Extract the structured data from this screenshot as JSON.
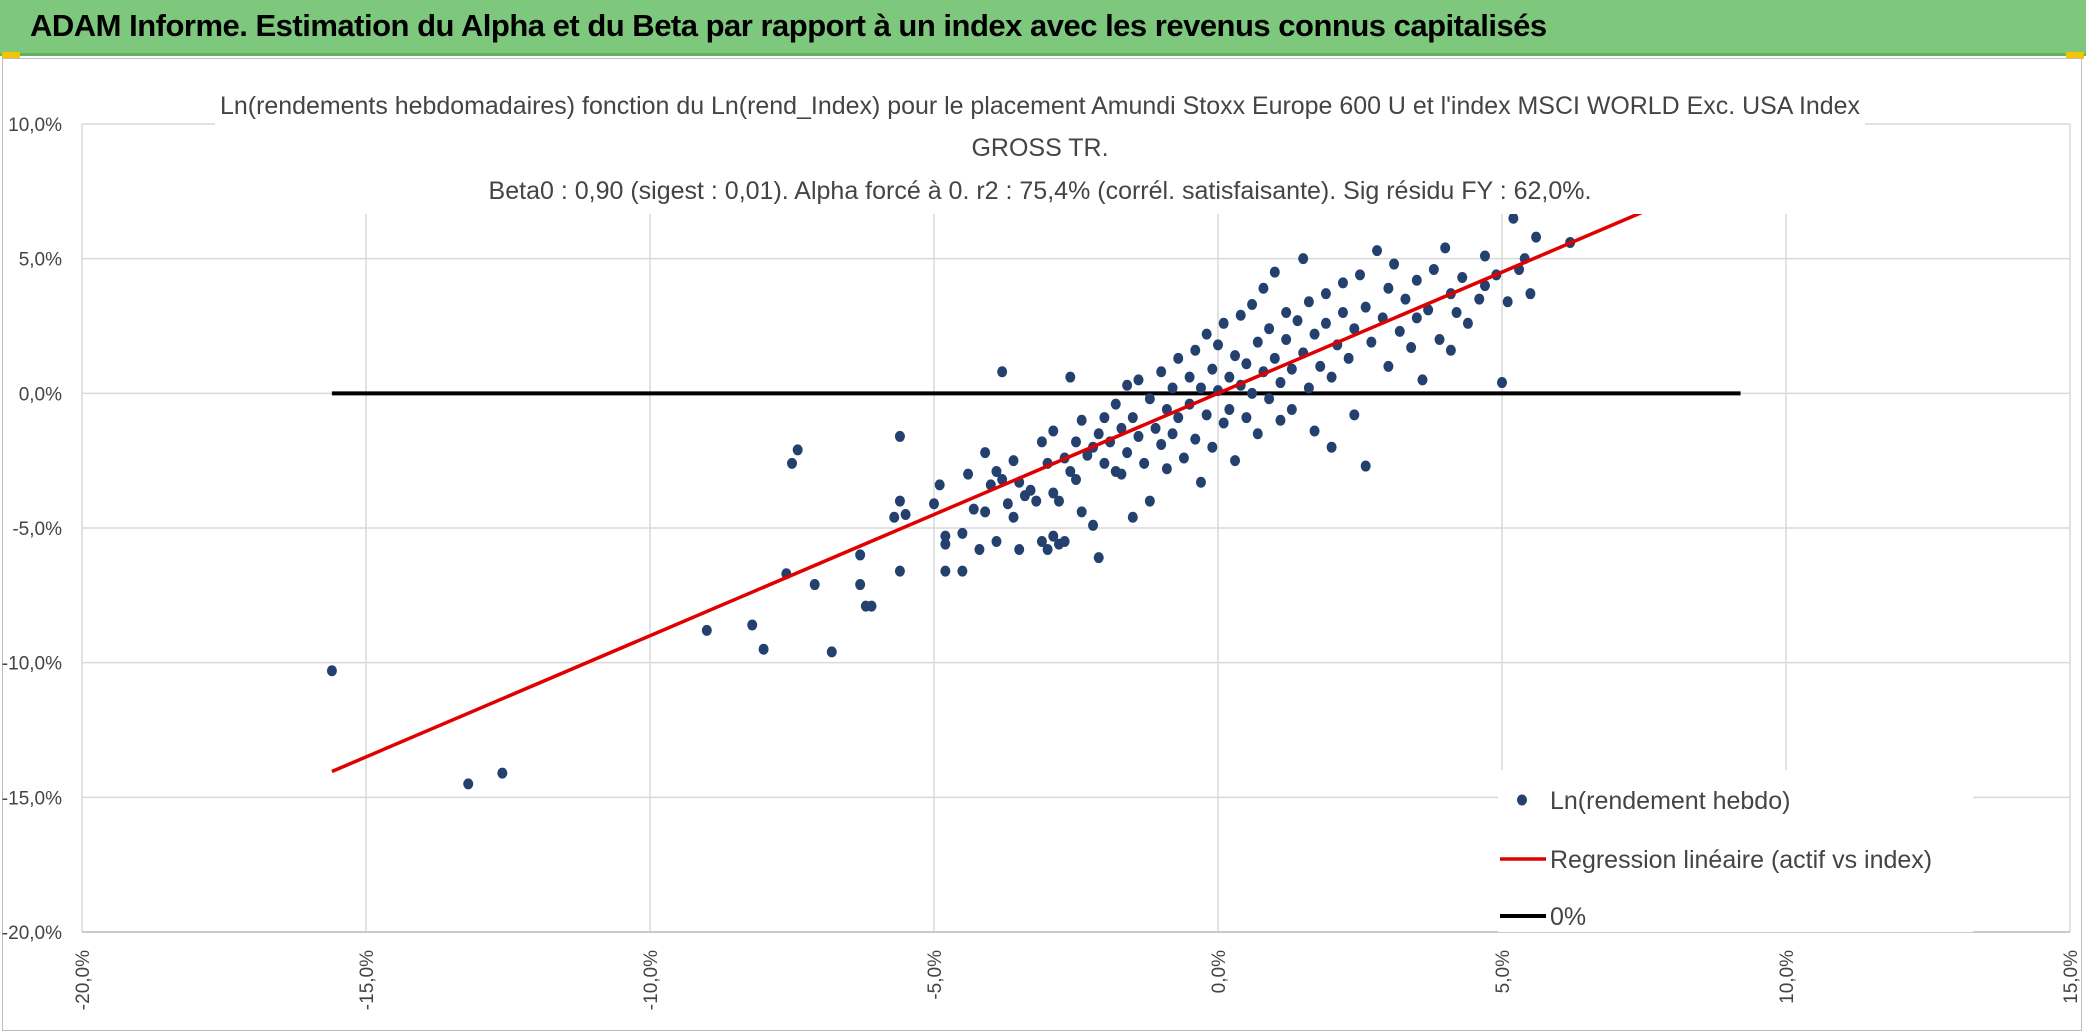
{
  "banner": {
    "title": "ADAM Informe. Estimation du Alpha et du Beta par rapport à un index avec les revenus connus capitalisés"
  },
  "colors": {
    "banner": "#7dc87d",
    "points": "#24406e",
    "regression": "#e00000",
    "zero_line": "#000000",
    "grid": "#d9d9d9"
  },
  "chart_data": {
    "type": "scatter",
    "title_lines": [
      "Ln(rendements hebdomadaires) fonction du Ln(rend_Index) pour le placement Amundi Stoxx Europe 600 U et l'index MSCI WORLD Exc. USA Index",
      "GROSS TR.",
      "Beta0 : 0,90 (sigest : 0,01). Alpha forcé à 0. r2 : 75,4% (corrél. satisfaisante). Sig résidu FY : 62,0%."
    ],
    "xlim": [
      -20,
      15
    ],
    "ylim": [
      -20,
      10
    ],
    "x_ticks": [
      -20,
      -15,
      -10,
      -5,
      0,
      5,
      10,
      15
    ],
    "y_ticks": [
      10,
      5,
      0,
      -5,
      -10,
      -15,
      -20
    ],
    "x_tick_labels": [
      "-20,0%",
      "-15,0%",
      "-10,0%",
      "-5,0%",
      "0,0%",
      "5,0%",
      "10,0%",
      "15,0%"
    ],
    "y_tick_labels": [
      "10,0%",
      "5,0%",
      "0,0%",
      "-5,0%",
      "-10,0%",
      "-15,0%",
      "-20,0%"
    ],
    "grid": true,
    "legend_position": "bottom-right",
    "legend": [
      {
        "label": "Ln(rendement hebdo)",
        "kind": "marker"
      },
      {
        "label": "Regression linéaire (actif vs index)",
        "kind": "line-red"
      },
      {
        "label": "0%",
        "kind": "line-black"
      }
    ],
    "regression": {
      "slope": 0.9,
      "intercept": 0,
      "x_range": [
        -15.6,
        7.5
      ]
    },
    "zero_line": {
      "y": 0,
      "x_range": [
        -15.6,
        9.2
      ]
    },
    "series": [
      {
        "name": "Ln(rendement hebdo)",
        "points": [
          [
            -15.6,
            -10.3
          ],
          [
            -13.2,
            -14.5
          ],
          [
            -12.6,
            -14.1
          ],
          [
            -9.0,
            -8.8
          ],
          [
            -8.2,
            -8.6
          ],
          [
            -8.0,
            -9.5
          ],
          [
            -7.6,
            -6.7
          ],
          [
            -7.5,
            -2.6
          ],
          [
            -7.4,
            -2.1
          ],
          [
            -7.1,
            -7.1
          ],
          [
            -6.8,
            -9.6
          ],
          [
            -6.3,
            -7.1
          ],
          [
            -6.3,
            -6.0
          ],
          [
            -6.2,
            -7.9
          ],
          [
            -6.1,
            -7.9
          ],
          [
            -5.7,
            -4.6
          ],
          [
            -5.6,
            -6.6
          ],
          [
            -5.6,
            -1.6
          ],
          [
            -5.6,
            -4.0
          ],
          [
            -5.5,
            -4.5
          ],
          [
            -5.0,
            -4.1
          ],
          [
            -4.9,
            -3.4
          ],
          [
            -4.8,
            -5.3
          ],
          [
            -4.8,
            -5.6
          ],
          [
            -4.8,
            -6.6
          ],
          [
            -4.5,
            -6.6
          ],
          [
            -4.5,
            -5.2
          ],
          [
            -4.4,
            -3.0
          ],
          [
            -4.3,
            -4.3
          ],
          [
            -4.2,
            -5.8
          ],
          [
            -4.1,
            -4.4
          ],
          [
            -4.1,
            -2.2
          ],
          [
            -4.0,
            -3.4
          ],
          [
            -3.9,
            -5.5
          ],
          [
            -3.9,
            -2.9
          ],
          [
            -3.8,
            0.8
          ],
          [
            -3.8,
            -3.2
          ],
          [
            -3.7,
            -4.1
          ],
          [
            -3.6,
            -4.6
          ],
          [
            -3.6,
            -2.5
          ],
          [
            -3.5,
            -3.3
          ],
          [
            -3.5,
            -5.8
          ],
          [
            -3.4,
            -3.8
          ],
          [
            -3.3,
            -3.6
          ],
          [
            -3.2,
            -4.0
          ],
          [
            -3.1,
            -5.5
          ],
          [
            -3.1,
            -1.8
          ],
          [
            -3.0,
            -2.6
          ],
          [
            -3.0,
            -5.8
          ],
          [
            -2.9,
            -3.7
          ],
          [
            -2.9,
            -5.3
          ],
          [
            -2.9,
            -1.4
          ],
          [
            -2.8,
            -4.0
          ],
          [
            -2.8,
            -5.6
          ],
          [
            -2.7,
            -2.4
          ],
          [
            -2.7,
            -5.5
          ],
          [
            -2.6,
            0.6
          ],
          [
            -2.6,
            -2.9
          ],
          [
            -2.5,
            -3.2
          ],
          [
            -2.5,
            -1.8
          ],
          [
            -2.4,
            -4.4
          ],
          [
            -2.4,
            -1.0
          ],
          [
            -2.3,
            -2.3
          ],
          [
            -2.2,
            -2.0
          ],
          [
            -2.2,
            -4.9
          ],
          [
            -2.1,
            -1.5
          ],
          [
            -2.1,
            -6.1
          ],
          [
            -2.0,
            -0.9
          ],
          [
            -2.0,
            -2.6
          ],
          [
            -1.9,
            -1.8
          ],
          [
            -1.8,
            -0.4
          ],
          [
            -1.8,
            -2.9
          ],
          [
            -1.7,
            -1.3
          ],
          [
            -1.7,
            -3.0
          ],
          [
            -1.6,
            0.3
          ],
          [
            -1.6,
            -2.2
          ],
          [
            -1.5,
            -0.9
          ],
          [
            -1.5,
            -4.6
          ],
          [
            -1.4,
            -1.6
          ],
          [
            -1.4,
            0.5
          ],
          [
            -1.3,
            -2.6
          ],
          [
            -1.2,
            -0.2
          ],
          [
            -1.2,
            -4.0
          ],
          [
            -1.1,
            -1.3
          ],
          [
            -1.0,
            0.8
          ],
          [
            -1.0,
            -1.9
          ],
          [
            -0.9,
            -0.6
          ],
          [
            -0.9,
            -2.8
          ],
          [
            -0.8,
            0.2
          ],
          [
            -0.8,
            -1.5
          ],
          [
            -0.7,
            -0.9
          ],
          [
            -0.7,
            1.3
          ],
          [
            -0.6,
            -2.4
          ],
          [
            -0.5,
            0.6
          ],
          [
            -0.5,
            -0.4
          ],
          [
            -0.4,
            -1.7
          ],
          [
            -0.4,
            1.6
          ],
          [
            -0.3,
            0.2
          ],
          [
            -0.3,
            -3.3
          ],
          [
            -0.2,
            -0.8
          ],
          [
            -0.2,
            2.2
          ],
          [
            -0.1,
            0.9
          ],
          [
            -0.1,
            -2.0
          ],
          [
            0.0,
            0.1
          ],
          [
            0.0,
            1.8
          ],
          [
            0.1,
            -1.1
          ],
          [
            0.1,
            2.6
          ],
          [
            0.2,
            0.6
          ],
          [
            0.2,
            -0.6
          ],
          [
            0.3,
            1.4
          ],
          [
            0.3,
            -2.5
          ],
          [
            0.4,
            0.3
          ],
          [
            0.4,
            2.9
          ],
          [
            0.5,
            -0.9
          ],
          [
            0.5,
            1.1
          ],
          [
            0.6,
            3.3
          ],
          [
            0.6,
            0.0
          ],
          [
            0.7,
            1.9
          ],
          [
            0.7,
            -1.5
          ],
          [
            0.8,
            0.8
          ],
          [
            0.8,
            3.9
          ],
          [
            0.9,
            -0.2
          ],
          [
            0.9,
            2.4
          ],
          [
            1.0,
            1.3
          ],
          [
            1.0,
            4.5
          ],
          [
            1.1,
            0.4
          ],
          [
            1.1,
            -1.0
          ],
          [
            1.2,
            2.0
          ],
          [
            1.2,
            3.0
          ],
          [
            1.3,
            0.9
          ],
          [
            1.3,
            -0.6
          ],
          [
            1.4,
            2.7
          ],
          [
            1.5,
            1.5
          ],
          [
            1.5,
            5.0
          ],
          [
            1.6,
            0.2
          ],
          [
            1.6,
            3.4
          ],
          [
            1.7,
            2.2
          ],
          [
            1.7,
            -1.4
          ],
          [
            1.8,
            1.0
          ],
          [
            1.9,
            3.7
          ],
          [
            1.9,
            2.6
          ],
          [
            2.0,
            0.6
          ],
          [
            2.0,
            -2.0
          ],
          [
            2.1,
            1.8
          ],
          [
            2.2,
            4.1
          ],
          [
            2.2,
            3.0
          ],
          [
            2.3,
            1.3
          ],
          [
            2.4,
            2.4
          ],
          [
            2.4,
            -0.8
          ],
          [
            2.5,
            4.4
          ],
          [
            2.6,
            3.2
          ],
          [
            2.6,
            -2.7
          ],
          [
            2.7,
            1.9
          ],
          [
            2.8,
            5.3
          ],
          [
            2.9,
            2.8
          ],
          [
            3.0,
            3.9
          ],
          [
            3.0,
            1.0
          ],
          [
            3.1,
            4.8
          ],
          [
            3.2,
            2.3
          ],
          [
            3.3,
            3.5
          ],
          [
            3.4,
            1.7
          ],
          [
            3.5,
            4.2
          ],
          [
            3.5,
            2.8
          ],
          [
            3.6,
            0.5
          ],
          [
            3.7,
            3.1
          ],
          [
            3.8,
            4.6
          ],
          [
            3.9,
            2.0
          ],
          [
            4.0,
            5.4
          ],
          [
            4.1,
            3.7
          ],
          [
            4.1,
            1.6
          ],
          [
            4.2,
            3.0
          ],
          [
            4.3,
            4.3
          ],
          [
            4.4,
            2.6
          ],
          [
            4.6,
            3.5
          ],
          [
            4.7,
            4.0
          ],
          [
            4.7,
            5.1
          ],
          [
            4.9,
            4.4
          ],
          [
            5.0,
            0.4
          ],
          [
            5.1,
            3.4
          ],
          [
            5.2,
            6.5
          ],
          [
            5.3,
            4.6
          ],
          [
            5.4,
            5.0
          ],
          [
            5.5,
            3.7
          ],
          [
            5.6,
            5.8
          ],
          [
            6.2,
            5.6
          ]
        ]
      }
    ]
  }
}
